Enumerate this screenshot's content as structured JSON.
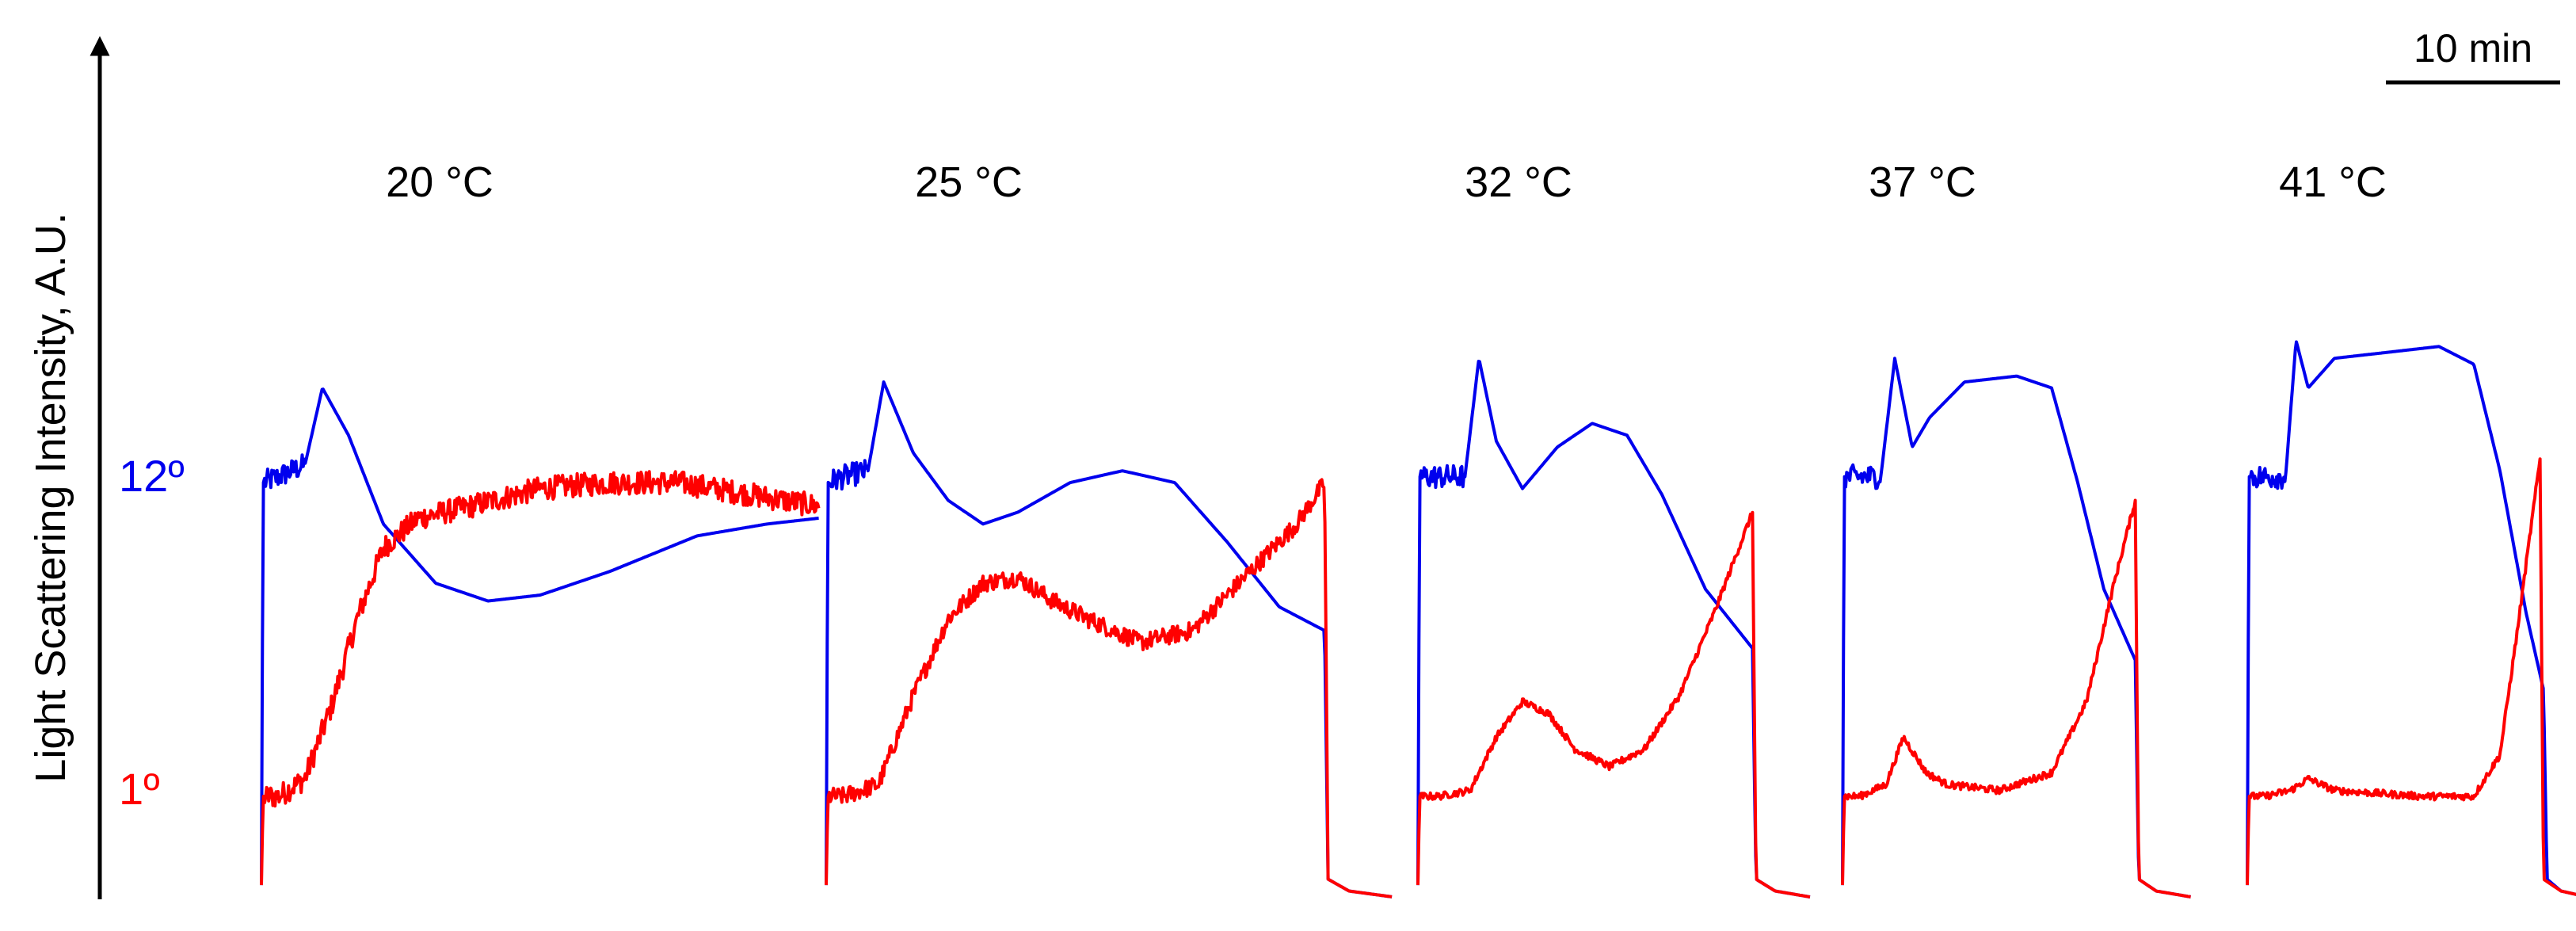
{
  "colors": {
    "blue": "#0000ee",
    "red": "#ff0000",
    "axis": "#000000"
  },
  "y_axis_label": "Light Scattering Intensity, A.U.",
  "y_tick_labels": [
    {
      "text": "12º",
      "color": "#0000ee",
      "value": 0.7
    },
    {
      "text": "1º",
      "color": "#ff0000",
      "value": 0.17
    }
  ],
  "scale_bar": {
    "label": "10 min",
    "minutes": 10
  },
  "chart_data": {
    "type": "line",
    "x_unit": "min",
    "y_range": [
      0,
      1
    ],
    "series_colors": [
      "#0000ee",
      "#ff0000"
    ],
    "panels": [
      {
        "label": "20 °C",
        "duration_min": 32.0,
        "series": [
          {
            "color": "#0000ee",
            "noise": 0.02,
            "noise_until": 2.5,
            "points": [
              [
                0,
                0.02
              ],
              [
                0.1,
                0.7
              ],
              [
                1.0,
                0.71
              ],
              [
                2.5,
                0.73
              ],
              [
                3.5,
                0.86
              ],
              [
                5,
                0.78
              ],
              [
                7,
                0.63
              ],
              [
                10,
                0.53
              ],
              [
                13,
                0.5
              ],
              [
                16,
                0.51
              ],
              [
                20,
                0.55
              ],
              [
                25,
                0.61
              ],
              [
                29,
                0.63
              ],
              [
                32,
                0.64
              ]
            ]
          },
          {
            "color": "#ff0000",
            "noise": 0.02,
            "noise_until": 32,
            "points": [
              [
                0,
                0.02
              ],
              [
                0.1,
                0.17
              ],
              [
                1.0,
                0.17
              ],
              [
                2.5,
                0.2
              ],
              [
                4,
                0.32
              ],
              [
                5.5,
                0.47
              ],
              [
                7,
                0.59
              ],
              [
                9,
                0.64
              ],
              [
                12,
                0.66
              ],
              [
                16,
                0.69
              ],
              [
                20,
                0.7
              ],
              [
                24,
                0.7
              ],
              [
                28,
                0.68
              ],
              [
                32,
                0.66
              ]
            ]
          }
        ]
      },
      {
        "label": "25 °C",
        "duration_min": 32.5,
        "series": [
          {
            "color": "#0000ee",
            "noise": 0.02,
            "noise_until": 2.4,
            "points": [
              [
                0,
                0.02
              ],
              [
                0.1,
                0.7
              ],
              [
                1.0,
                0.71
              ],
              [
                2.4,
                0.72
              ],
              [
                3.3,
                0.87
              ],
              [
                5,
                0.75
              ],
              [
                7,
                0.67
              ],
              [
                9,
                0.63
              ],
              [
                11,
                0.65
              ],
              [
                14,
                0.7
              ],
              [
                17,
                0.72
              ],
              [
                20,
                0.7
              ],
              [
                23,
                0.6
              ],
              [
                26,
                0.49
              ],
              [
                28.6,
                0.45
              ],
              [
                28.8,
                0.03
              ],
              [
                30,
                0.01
              ],
              [
                32.5,
                0.0
              ]
            ]
          },
          {
            "color": "#ff0000",
            "noise": 0.015,
            "noise_until": 28.6,
            "points": [
              [
                0,
                0.02
              ],
              [
                0.1,
                0.17
              ],
              [
                1.0,
                0.17
              ],
              [
                3,
                0.19
              ],
              [
                5,
                0.34
              ],
              [
                7,
                0.47
              ],
              [
                9,
                0.53
              ],
              [
                11,
                0.54
              ],
              [
                13,
                0.5
              ],
              [
                15,
                0.47
              ],
              [
                18,
                0.43
              ],
              [
                21,
                0.45
              ],
              [
                24,
                0.54
              ],
              [
                27,
                0.63
              ],
              [
                28.6,
                0.7
              ],
              [
                28.8,
                0.03
              ],
              [
                30,
                0.01
              ],
              [
                32.5,
                0.0
              ]
            ]
          }
        ]
      },
      {
        "label": "32 °C",
        "duration_min": 22.5,
        "series": [
          {
            "color": "#0000ee",
            "noise": 0.02,
            "noise_until": 2.7,
            "points": [
              [
                0,
                0.02
              ],
              [
                0.1,
                0.71
              ],
              [
                1.2,
                0.71
              ],
              [
                2.7,
                0.71
              ],
              [
                3.5,
                0.91
              ],
              [
                4.5,
                0.77
              ],
              [
                6,
                0.69
              ],
              [
                8,
                0.76
              ],
              [
                10,
                0.8
              ],
              [
                12,
                0.78
              ],
              [
                14,
                0.68
              ],
              [
                16.5,
                0.52
              ],
              [
                19.2,
                0.42
              ],
              [
                19.4,
                0.03
              ],
              [
                20.5,
                0.01
              ],
              [
                22.5,
                0.0
              ]
            ]
          },
          {
            "color": "#ff0000",
            "noise": 0.006,
            "noise_until": 19.2,
            "points": [
              [
                0,
                0.02
              ],
              [
                0.1,
                0.17
              ],
              [
                1.2,
                0.17
              ],
              [
                3,
                0.18
              ],
              [
                4.5,
                0.27
              ],
              [
                6,
                0.33
              ],
              [
                7.5,
                0.31
              ],
              [
                9,
                0.25
              ],
              [
                11,
                0.22
              ],
              [
                13,
                0.25
              ],
              [
                15,
                0.34
              ],
              [
                17,
                0.48
              ],
              [
                19.2,
                0.65
              ],
              [
                19.4,
                0.03
              ],
              [
                20.5,
                0.01
              ],
              [
                22.5,
                0.0
              ]
            ]
          }
        ]
      },
      {
        "label": "37 °C",
        "duration_min": 20.0,
        "series": [
          {
            "color": "#0000ee",
            "noise": 0.02,
            "noise_until": 2.2,
            "points": [
              [
                0,
                0.02
              ],
              [
                0.1,
                0.71
              ],
              [
                1.0,
                0.71
              ],
              [
                2.2,
                0.71
              ],
              [
                3.0,
                0.91
              ],
              [
                4,
                0.76
              ],
              [
                5,
                0.81
              ],
              [
                7,
                0.87
              ],
              [
                10,
                0.88
              ],
              [
                12,
                0.86
              ],
              [
                13.5,
                0.7
              ],
              [
                15,
                0.52
              ],
              [
                16.8,
                0.4
              ],
              [
                17.0,
                0.03
              ],
              [
                18,
                0.01
              ],
              [
                20,
                0.0
              ]
            ]
          },
          {
            "color": "#ff0000",
            "noise": 0.006,
            "noise_until": 16.8,
            "points": [
              [
                0,
                0.02
              ],
              [
                0.1,
                0.17
              ],
              [
                1.0,
                0.17
              ],
              [
                2.5,
                0.19
              ],
              [
                3.5,
                0.27
              ],
              [
                4.8,
                0.21
              ],
              [
                6,
                0.19
              ],
              [
                9,
                0.18
              ],
              [
                12,
                0.21
              ],
              [
                14,
                0.33
              ],
              [
                15.5,
                0.52
              ],
              [
                16.8,
                0.67
              ],
              [
                17.0,
                0.03
              ],
              [
                18,
                0.01
              ],
              [
                20,
                0.0
              ]
            ]
          }
        ]
      },
      {
        "label": "41 °C",
        "duration_min": 19.5,
        "series": [
          {
            "color": "#0000ee",
            "noise": 0.02,
            "noise_until": 2.2,
            "points": [
              [
                0,
                0.02
              ],
              [
                0.1,
                0.71
              ],
              [
                1.0,
                0.71
              ],
              [
                2.2,
                0.71
              ],
              [
                2.8,
                0.94
              ],
              [
                3.5,
                0.86
              ],
              [
                5,
                0.91
              ],
              [
                8,
                0.92
              ],
              [
                11,
                0.93
              ],
              [
                13,
                0.9
              ],
              [
                14.5,
                0.72
              ],
              [
                16,
                0.48
              ],
              [
                17.0,
                0.35
              ],
              [
                17.2,
                0.03
              ],
              [
                18,
                0.01
              ],
              [
                19.5,
                0.0
              ]
            ]
          },
          {
            "color": "#ff0000",
            "noise": 0.006,
            "noise_until": 16.8,
            "points": [
              [
                0,
                0.02
              ],
              [
                0.1,
                0.17
              ],
              [
                1.0,
                0.17
              ],
              [
                2.5,
                0.18
              ],
              [
                3.5,
                0.2
              ],
              [
                5,
                0.18
              ],
              [
                10,
                0.17
              ],
              [
                13,
                0.17
              ],
              [
                14.5,
                0.24
              ],
              [
                15.5,
                0.45
              ],
              [
                16.8,
                0.74
              ],
              [
                17.0,
                0.03
              ],
              [
                18,
                0.01
              ],
              [
                19.5,
                0.0
              ]
            ]
          }
        ]
      }
    ]
  }
}
